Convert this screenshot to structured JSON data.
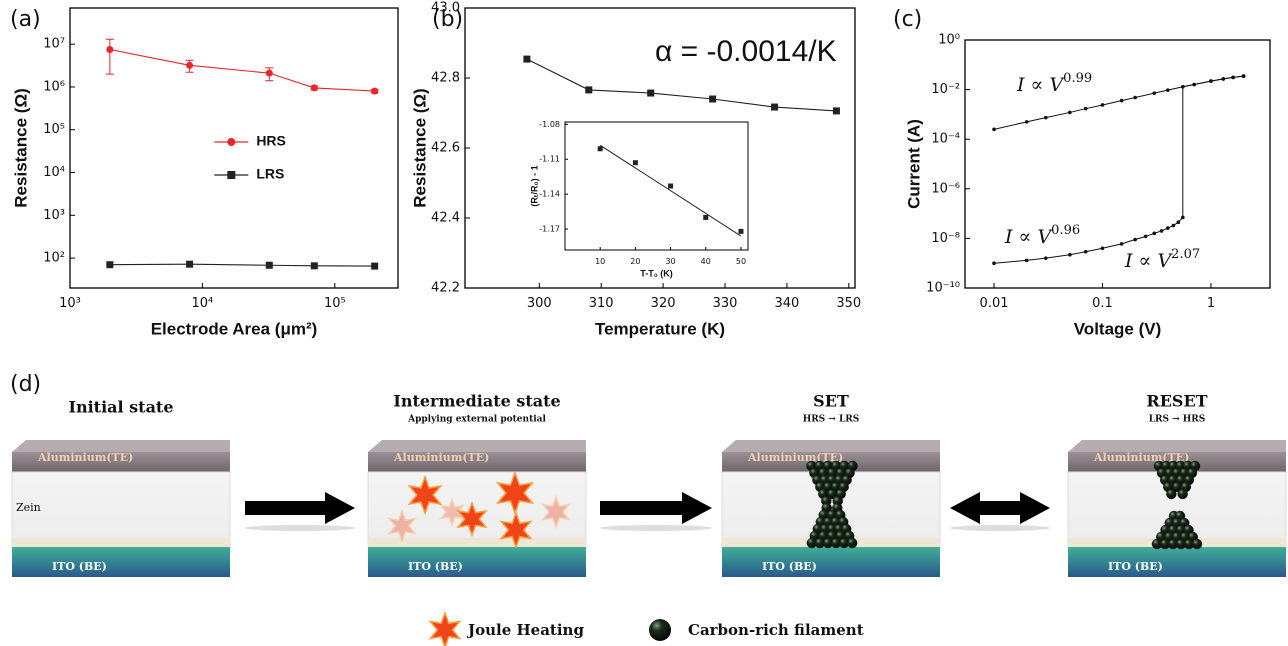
{
  "chart_data": [
    {
      "label": "(a)",
      "type": "line",
      "xlabel": "Electrode Area (μm²)",
      "ylabel": "Resistance (Ω)",
      "xscale": "log",
      "yscale": "log",
      "xlim": [
        1000,
        300000
      ],
      "ylim": [
        20,
        70000000
      ],
      "xticks": [
        {
          "value": 1000,
          "label": "10³"
        },
        {
          "value": 10000,
          "label": "10⁴"
        },
        {
          "value": 100000,
          "label": "10⁵"
        }
      ],
      "yticks": [
        {
          "value": 100,
          "label": "10²"
        },
        {
          "value": 1000,
          "label": "10³"
        },
        {
          "value": 10000,
          "label": "10⁴"
        },
        {
          "value": 100000,
          "label": "10⁵"
        },
        {
          "value": 1000000,
          "label": "10⁶"
        },
        {
          "value": 10000000,
          "label": "10⁷"
        }
      ],
      "x": [
        2000,
        8000,
        32000,
        70000,
        200000
      ],
      "series": [
        {
          "name": "HRS",
          "color": "#e8262a",
          "marker": "circle",
          "values": [
            7500000,
            3200000,
            2100000,
            950000,
            800000
          ],
          "errors": [
            5500000,
            1000000,
            700000,
            100000,
            80000
          ]
        },
        {
          "name": "LRS",
          "color": "#222222",
          "marker": "square",
          "values": [
            70,
            72,
            68,
            66,
            65
          ]
        }
      ],
      "legend": "center-left"
    },
    {
      "label": "(b)",
      "type": "line",
      "xlabel": "Temperature (K)",
      "ylabel": "Resistance (Ω)",
      "annotation": "α = -0.0014/K",
      "xlim": [
        288,
        351
      ],
      "ylim": [
        42.2,
        43
      ],
      "xticks": [
        300,
        310,
        320,
        330,
        340,
        350
      ],
      "yticks": [
        42.2,
        42.4,
        42.6,
        42.8,
        {
          "value": 43,
          "label": "43.0"
        }
      ],
      "x": [
        298,
        308,
        318,
        328,
        338,
        348
      ],
      "series": [
        {
          "color": "#222222",
          "marker": "square",
          "values": [
            42.854,
            42.766,
            42.757,
            42.74,
            42.717,
            42.706
          ]
        }
      ]
    },
    {
      "type": "scatter",
      "xlabel": "T-T₀ (K)",
      "ylabel": "(Rₜ/R₀) - 1",
      "xlim": [
        0,
        52
      ],
      "ylim": [
        -1.188,
        -1.078
      ],
      "xticks": [
        10,
        20,
        30,
        40,
        50
      ],
      "yticks": [
        -1.17,
        -1.14,
        -1.11,
        -1.08
      ],
      "x": [
        10,
        20,
        30,
        40,
        50
      ],
      "series": [
        {
          "color": "#222222",
          "marker": "square",
          "values": [
            -1.101,
            -1.113,
            -1.133,
            -1.16,
            -1.172
          ]
        }
      ],
      "fit_line": {
        "x": [
          10,
          50
        ],
        "values": [
          -1.098,
          -1.176
        ]
      }
    },
    {
      "label": "(c)",
      "type": "line",
      "xlabel": "Voltage (V)",
      "ylabel": "Current (A)",
      "xscale": "log",
      "yscale": "log",
      "xlim": [
        0.0054,
        3.5
      ],
      "ylim": [
        1e-10,
        1
      ],
      "xticks": [
        0.01,
        0.1,
        1
      ],
      "yticks": [
        {
          "value": 1e-10,
          "label": "10⁻¹⁰"
        },
        {
          "value": 1e-08,
          "label": "10⁻⁸"
        },
        {
          "value": 1e-06,
          "label": "10⁻⁶"
        },
        {
          "value": 0.0001,
          "label": "10⁻⁴"
        },
        {
          "value": 0.01,
          "label": "10⁻²"
        },
        {
          "value": 1,
          "label": "10⁰"
        }
      ],
      "series": [
        {
          "color": "#111111",
          "marker": "circle",
          "x": [
            0.01,
            0.02,
            0.03,
            0.05,
            0.07,
            0.1,
            0.15,
            0.2,
            0.25,
            0.3,
            0.35,
            0.4,
            0.45,
            0.5,
            0.55,
            0.55,
            0.7,
            1,
            1.3,
            1.6,
            2
          ],
          "values": [
            1e-09,
            1.3e-09,
            1.6e-09,
            2.2e-09,
            2.9e-09,
            4e-09,
            6e-09,
            9e-09,
            1.2e-08,
            1.6e-08,
            2e-08,
            2.6e-08,
            3.3e-08,
            4.5e-08,
            7e-08,
            0.013,
            0.016,
            0.022,
            0.027,
            0.031,
            0.035
          ]
        },
        {
          "color": "#111111",
          "marker": "circle",
          "x": [
            2,
            1.6,
            1.3,
            1,
            0.7,
            0.55,
            0.4,
            0.3,
            0.2,
            0.15,
            0.1,
            0.07,
            0.05,
            0.03,
            0.02,
            0.01
          ],
          "values": [
            0.035,
            0.031,
            0.027,
            0.022,
            0.016,
            0.013,
            0.0095,
            0.0072,
            0.0048,
            0.0036,
            0.0024,
            0.0017,
            0.0012,
            0.00074,
            0.0005,
            0.00025
          ]
        }
      ],
      "annotations": [
        {
          "text": "I ∝ V",
          "exponent": "0.99"
        },
        {
          "text": "I ∝ V",
          "exponent": "0.96"
        },
        {
          "text": "I ∝ V",
          "exponent": "2.07"
        }
      ]
    }
  ],
  "diagram": {
    "label": "(d)",
    "stages": [
      {
        "title": "Initial state",
        "top_layer": "Aluminium(TE)",
        "middle_layer": "Zein",
        "bottom_layer": "ITO (BE)"
      },
      {
        "title": "Intermediate state",
        "subtitle": "Applying external potential",
        "top_layer": "Aluminium(TE)",
        "bottom_layer": "ITO (BE)"
      },
      {
        "title": "SET",
        "subtitle": "HRS → LRS",
        "top_layer": "Aluminium(TE)",
        "bottom_layer": "ITO (BE)"
      },
      {
        "title": "RESET",
        "subtitle": "LRS → HRS",
        "top_layer": "Aluminium(TE)",
        "bottom_layer": "ITO (BE)"
      }
    ],
    "legend": [
      "Joule Heating",
      "Carbon-rich filament"
    ]
  }
}
